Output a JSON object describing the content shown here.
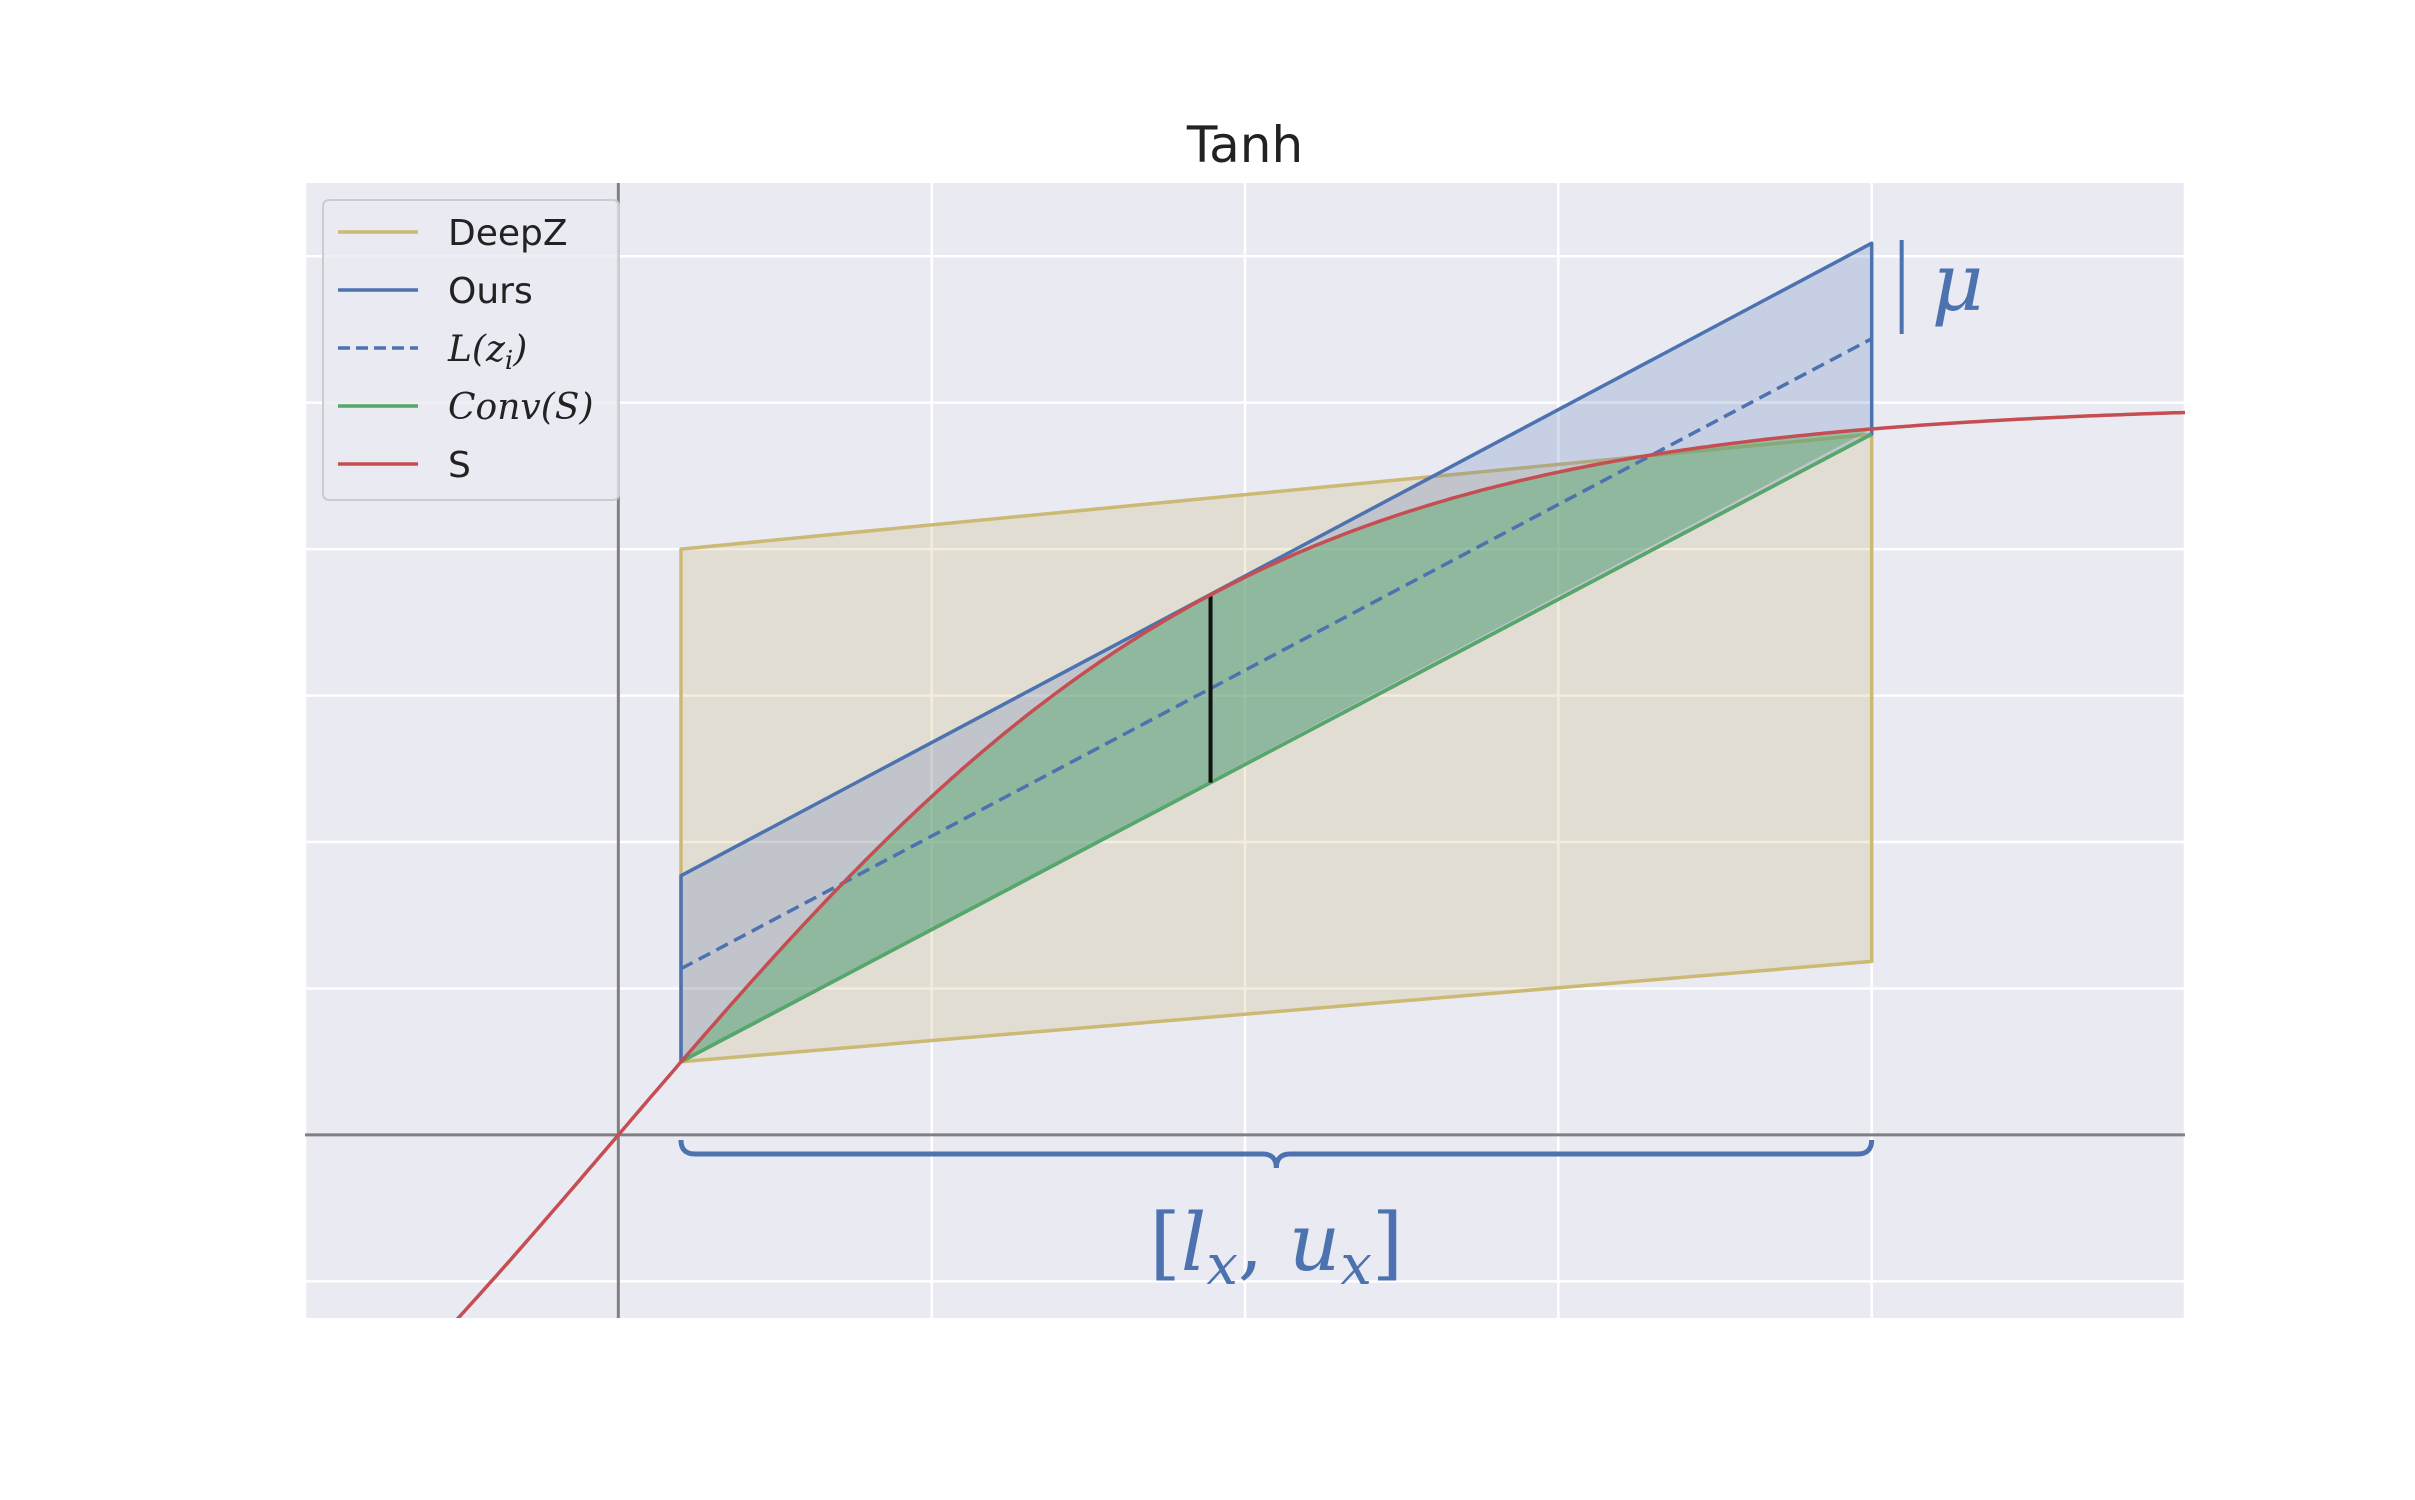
{
  "chart_data": {
    "type": "line",
    "title": "Tanh",
    "xlabel": "",
    "ylabel": "",
    "xlim": [
      -0.5,
      2.5
    ],
    "ylim": [
      -0.125,
      0.65
    ],
    "grid": true,
    "legend_position": "top-left",
    "colors": {
      "deepz": "#ccb974",
      "ours": "#4c72b0",
      "conv": "#55a868",
      "s": "#c44e52",
      "background": "#eaeaf2",
      "grid": "#ffffff",
      "axis": "#808080"
    },
    "series": [
      {
        "name": "DeepZ",
        "style": "solid",
        "color": "#ccb974",
        "points": [
          [
            0.1,
            0.4
          ],
          [
            2.0,
            0.4785
          ],
          [
            2.0,
            0.1185
          ],
          [
            0.1,
            0.05
          ]
        ]
      },
      {
        "name": "Ours",
        "style": "solid",
        "color": "#4c72b0",
        "points": [
          [
            0.1,
            0.05
          ],
          [
            0.1,
            0.177
          ],
          [
            2.0,
            0.6089
          ],
          [
            2.0,
            0.4785
          ]
        ]
      },
      {
        "name": "L(z_i)",
        "style": "dashed",
        "color": "#4c72b0",
        "points": [
          [
            0.1,
            0.1135
          ],
          [
            2.0,
            0.5437
          ]
        ]
      },
      {
        "name": "Conv(S)",
        "style": "solid",
        "color": "#55a868",
        "points": [
          [
            0.1,
            0.05
          ],
          [
            2.0,
            0.4785
          ]
        ]
      },
      {
        "name": "S",
        "style": "solid",
        "color": "#c44e52",
        "function": "0.5*tanh(x)",
        "domain": [
          -0.26,
          2.5
        ]
      }
    ],
    "annotations": {
      "vertical_segment_x": 0.945,
      "mu_label": "μ",
      "interval_label_parts": [
        "[",
        "l",
        "x",
        ", ",
        "u",
        "x",
        "]"
      ],
      "interval": [
        0.1,
        2.0
      ]
    }
  },
  "legend": [
    {
      "key": "deepz",
      "label": "DeepZ",
      "italic": false,
      "dashed": false,
      "color": "#ccb974"
    },
    {
      "key": "ours",
      "label": "Ours",
      "italic": false,
      "dashed": false,
      "color": "#4c72b0"
    },
    {
      "key": "lzi",
      "label": "L(z",
      "sub": "i",
      "suffix": ")",
      "italic": true,
      "dashed": true,
      "color": "#4c72b0"
    },
    {
      "key": "conv",
      "label": "Conv(S)",
      "italic": true,
      "dashed": false,
      "color": "#55a868"
    },
    {
      "key": "s",
      "label": "S",
      "italic": false,
      "dashed": false,
      "color": "#c44e52"
    }
  ]
}
